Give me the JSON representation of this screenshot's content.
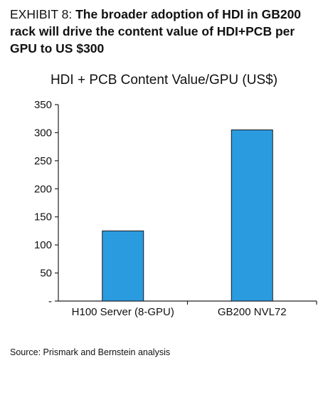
{
  "exhibit": {
    "label": "EXHIBIT 8: ",
    "headline": "The broader adoption of HDI in GB200 rack will drive the content value of HDI+PCB per GPU to US $300"
  },
  "source": "Source: Prismark and Bernstein analysis",
  "chart_data": {
    "type": "bar",
    "title": "HDI + PCB Content Value/GPU (US$)",
    "xlabel": "",
    "ylabel": "",
    "categories": [
      "H100 Server (8-GPU)",
      "GB200 NVL72"
    ],
    "values": [
      125,
      305
    ],
    "ylim": [
      0,
      350
    ],
    "yticks": [
      0,
      50,
      100,
      150,
      200,
      250,
      300,
      350
    ],
    "ytick_labels": [
      "-",
      "50",
      "100",
      "150",
      "200",
      "250",
      "300",
      "350"
    ],
    "grid": false,
    "legend": "none",
    "bar_color": "#2b9be0",
    "bar_edge_color": "#1a1a1a"
  }
}
